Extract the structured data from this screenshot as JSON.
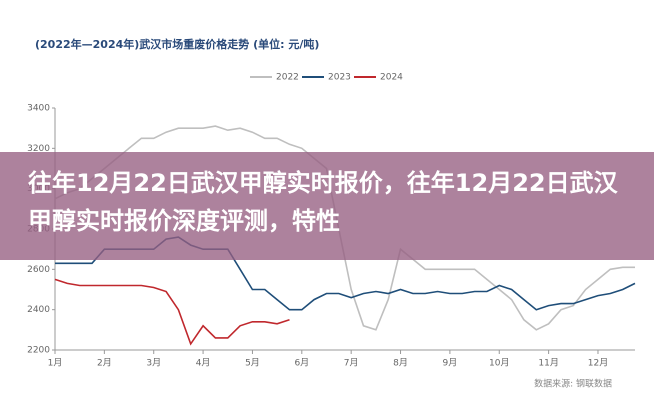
{
  "chart_data": {
    "type": "line",
    "title": "(2022年—2024年)武汉市场重废价格走势 (单位: 元/吨)",
    "source": "数据来源: 钢联数据",
    "categories": [
      "1月",
      null,
      null,
      null,
      "2月",
      null,
      null,
      null,
      "3月",
      null,
      null,
      null,
      "4月",
      null,
      null,
      null,
      "5月",
      null,
      null,
      null,
      "6月",
      null,
      null,
      null,
      "7月",
      null,
      null,
      null,
      "8月",
      null,
      null,
      null,
      "9月",
      null,
      null,
      null,
      "10月",
      null,
      null,
      null,
      "11月",
      null,
      null,
      null,
      "12月",
      null,
      null,
      null
    ],
    "series": [
      {
        "name": "2022",
        "color": "#bfbfbf",
        "values": [
          2950,
          2980,
          3000,
          3050,
          3100,
          3150,
          3200,
          3250,
          3250,
          3280,
          3300,
          3300,
          3300,
          3310,
          3290,
          3300,
          3280,
          3250,
          3250,
          3220,
          3200,
          3150,
          3100,
          2800,
          2500,
          2320,
          2300,
          2450,
          2700,
          2650,
          2600,
          2600,
          2600,
          2600,
          2600,
          2550,
          2500,
          2450,
          2350,
          2300,
          2330,
          2400,
          2420,
          2500,
          2550,
          2600,
          2610,
          2610
        ]
      },
      {
        "name": "2023",
        "color": "#1f4e79",
        "values": [
          2630,
          2630,
          2630,
          2630,
          2700,
          2700,
          2700,
          2700,
          2700,
          2750,
          2760,
          2720,
          2700,
          2700,
          2700,
          2600,
          2500,
          2500,
          2450,
          2400,
          2400,
          2450,
          2480,
          2480,
          2460,
          2480,
          2490,
          2480,
          2500,
          2480,
          2480,
          2490,
          2480,
          2480,
          2490,
          2490,
          2520,
          2500,
          2450,
          2400,
          2420,
          2430,
          2430,
          2450,
          2470,
          2480,
          2500,
          2530
        ]
      },
      {
        "name": "2024",
        "color": "#c0282d",
        "values": [
          2550,
          2530,
          2520,
          2520,
          2520,
          2520,
          2520,
          2520,
          2510,
          2490,
          2400,
          2230,
          2320,
          2260,
          2260,
          2320,
          2340,
          2340,
          2330,
          2350,
          null,
          null,
          null,
          null,
          null,
          null,
          null,
          null,
          null,
          null,
          null,
          null,
          null,
          null,
          null,
          null,
          null,
          null,
          null,
          null,
          null,
          null,
          null,
          null,
          null,
          null,
          null,
          null
        ]
      }
    ],
    "ylim": [
      2200,
      3400
    ],
    "yticks": [
      2200,
      2400,
      2600,
      2800,
      3000,
      3200,
      3400
    ],
    "grid": false
  },
  "overlay_title": "往年12月22日武汉甲醇实时报价，往年12月22日武汉甲醇实时报价深度评测，特性"
}
